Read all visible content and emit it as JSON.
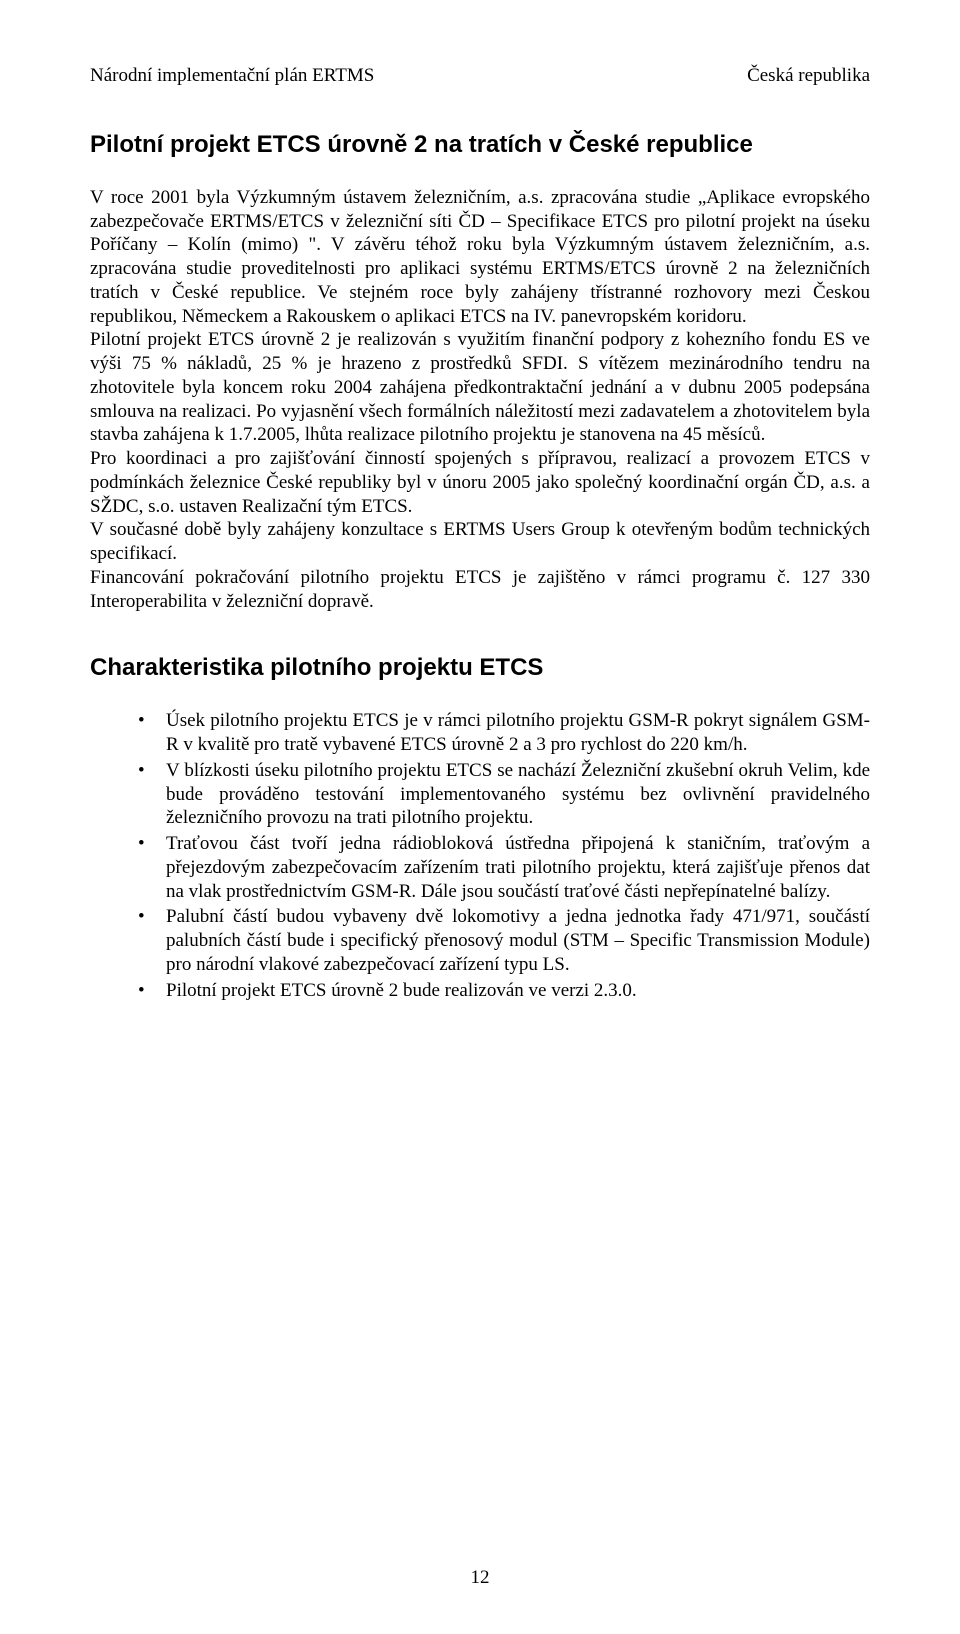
{
  "header": {
    "left": "Národní implementační plán ERTMS",
    "right": "Česká republika"
  },
  "title": "Pilotní projekt ETCS úrovně 2 na tratích v České republice",
  "paragraphs": [
    "V roce 2001 byla Výzkumným ústavem železničním, a.s. zpracována studie „Aplikace evropského zabezpečovače ERTMS/ETCS v železniční síti ČD – Specifikace ETCS pro pilotní projekt na úseku Poříčany – Kolín (mimo) \". V závěru téhož roku byla Výzkumným ústavem železničním, a.s. zpracována studie proveditelnosti pro aplikaci systému ERTMS/ETCS úrovně 2 na železničních tratích v České republice. Ve stejném roce byly zahájeny třístranné rozhovory mezi Českou republikou, Německem a Rakouskem o aplikaci ETCS na IV. panevropském koridoru.",
    "Pilotní projekt ETCS úrovně 2 je realizován s využitím finanční podpory z kohezního fondu ES ve výši 75 % nákladů, 25 % je hrazeno z prostředků SFDI. S vítězem mezinárodního tendru na zhotovitele byla koncem roku 2004 zahájena předkontraktační jednání a v dubnu 2005 podepsána smlouva na realizaci. Po vyjasnění všech formálních náležitostí mezi zadavatelem a zhotovitelem byla stavba zahájena k 1.7.2005, lhůta realizace pilotního projektu je stanovena na 45 měsíců.",
    "Pro koordinaci a pro zajišťování činností spojených s přípravou, realizací a provozem ETCS v podmínkách železnice České republiky byl v únoru 2005 jako společný koordinační orgán ČD, a.s. a SŽDC, s.o. ustaven Realizační tým ETCS.",
    "V současné době byly zahájeny konzultace s ERTMS Users Group k otevřeným bodům technických specifikací.",
    "Financování pokračování pilotního projektu ETCS je zajištěno v rámci programu č. 127 330 Interoperabilita v železniční dopravě."
  ],
  "subtitle": "Charakteristika pilotního projektu ETCS",
  "bullets": [
    "Úsek pilotního projektu ETCS je v rámci pilotního projektu GSM-R pokryt signálem GSM-R v kvalitě pro tratě vybavené ETCS úrovně 2 a 3 pro rychlost do 220 km/h.",
    "V blízkosti úseku pilotního projektu ETCS se nachází Železniční zkušební okruh Velim, kde bude prováděno testování implementovaného systému bez ovlivnění pravidelného železničního provozu na trati pilotního projektu.",
    "Traťovou část tvoří jedna rádiobloková ústředna připojená k staničním, traťovým a přejezdovým zabezpečovacím zařízením trati pilotního projektu, která zajišťuje přenos dat na vlak prostřednictvím GSM-R. Dále jsou součástí traťové části nepřepínatelné balízy.",
    "Palubní částí budou vybaveny dvě lokomotivy a jedna jednotka řady 471/971, součástí palubních částí bude i specifický přenosový modul (STM – Specific Transmission Module) pro národní vlakové zabezpečovací zařízení typu LS.",
    "Pilotní projekt ETCS úrovně 2 bude realizován ve verzi 2.3.0."
  ],
  "page_number": "12"
}
